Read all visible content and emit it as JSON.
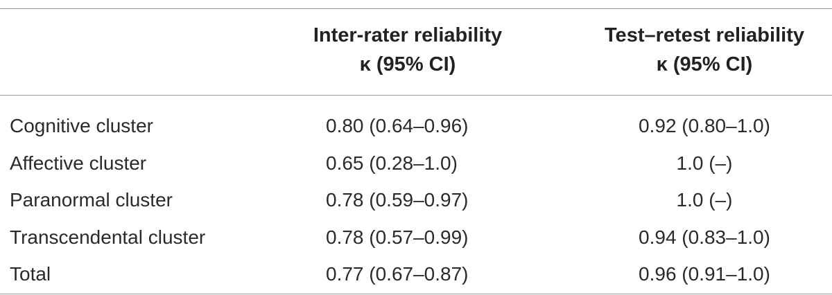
{
  "table": {
    "headers": {
      "col1_line1": "Inter-rater reliability",
      "col1_line2": "κ (95% CI)",
      "col2_line1": "Test–retest reliability",
      "col2_line2": "κ (95% CI)"
    },
    "rows": [
      {
        "label": "Cognitive cluster",
        "inter_rater": "0.80 (0.64–0.96)",
        "test_retest": "0.92 (0.80–1.0)"
      },
      {
        "label": "Affective cluster",
        "inter_rater": "0.65 (0.28–1.0)",
        "test_retest": "1.0 (–)"
      },
      {
        "label": "Paranormal cluster",
        "inter_rater": "0.78 (0.59–0.97)",
        "test_retest": "1.0 (–)"
      },
      {
        "label": "Transcendental cluster",
        "inter_rater": "0.78 (0.57–0.99)",
        "test_retest": "0.94 (0.83–1.0)"
      },
      {
        "label": "Total",
        "inter_rater": "0.77 (0.67–0.87)",
        "test_retest": "0.96 (0.91–1.0)"
      }
    ]
  }
}
